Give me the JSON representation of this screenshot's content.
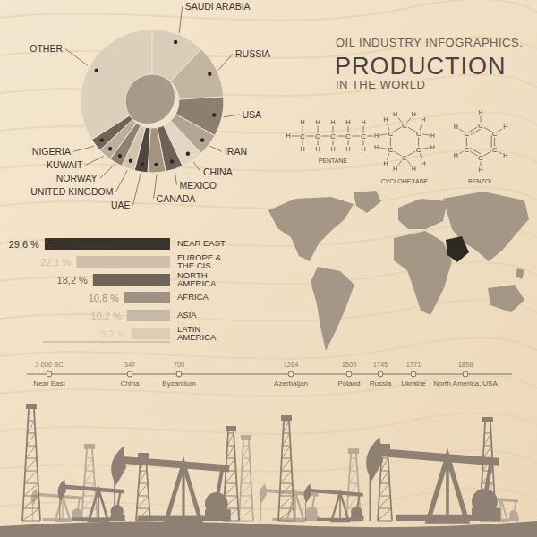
{
  "header": {
    "title": "OIL INDUSTRY INFOGRAPHICS.",
    "heading": "PRODUCTION",
    "subtitle": "IN THE WORLD"
  },
  "chart_data": [
    {
      "type": "pie",
      "categories": [
        "SAUDI ARABIA",
        "RUSSIA",
        "USA",
        "IRAN",
        "CHINA",
        "MEXICO",
        "CANADA",
        "UAE",
        "UNITED KINGDOM",
        "NORWAY",
        "KUWAIT",
        "NIGERIA",
        "OTHER"
      ],
      "values": [
        12,
        12,
        9,
        5,
        5,
        4,
        4,
        3,
        3,
        3,
        3,
        3,
        34
      ],
      "colors": [
        "#d9ccb9",
        "#c4b5a0",
        "#8c7f71",
        "#b3a593",
        "#e1d5c3",
        "#6d6257",
        "#a39482",
        "#50473f",
        "#d2c4b0",
        "#8f8172",
        "#bdae9b",
        "#706458",
        "#dccfbc"
      ]
    },
    {
      "type": "bar",
      "orientation": "horizontal",
      "categories": [
        "NEAR EAST",
        "EUROPE & THE CIS",
        "NORTH AMERICA",
        "AFRICA",
        "ASIA",
        "LATIN AMERICA"
      ],
      "values": [
        29.6,
        22.1,
        18.2,
        10.8,
        10.2,
        9.2
      ],
      "value_labels": [
        "29,6 %",
        "22,1 %",
        "18,2 %",
        "10,8 %",
        "10,2 %",
        "9,2 %"
      ],
      "data_labels": true,
      "colors": [
        "#3a332c",
        "#cdbfac",
        "#6e6358",
        "#a09282",
        "#c6b9a7",
        "#dccdb7"
      ],
      "xlim": [
        0,
        30
      ],
      "xticks": [
        0,
        30
      ],
      "tick_labels": "y"
    }
  ],
  "molecules": {
    "atoms": {
      "carbon": "C",
      "hydrogen": "H"
    },
    "names": [
      "PENTANE",
      "CYCLOHEXANE",
      "BENZOL"
    ]
  },
  "timeline": [
    {
      "date": "3 000 BC",
      "place": "Near East"
    },
    {
      "date": "347",
      "place": "China"
    },
    {
      "date": "700",
      "place": "Byzantium"
    },
    {
      "date": "1264",
      "place": "Azerbaijan"
    },
    {
      "date": "1500",
      "place": "Poland"
    },
    {
      "date": "1745",
      "place": "Russia"
    },
    {
      "date": "1771",
      "place": "Ukraine"
    },
    {
      "date": "1858",
      "place": "North America, USA"
    }
  ]
}
